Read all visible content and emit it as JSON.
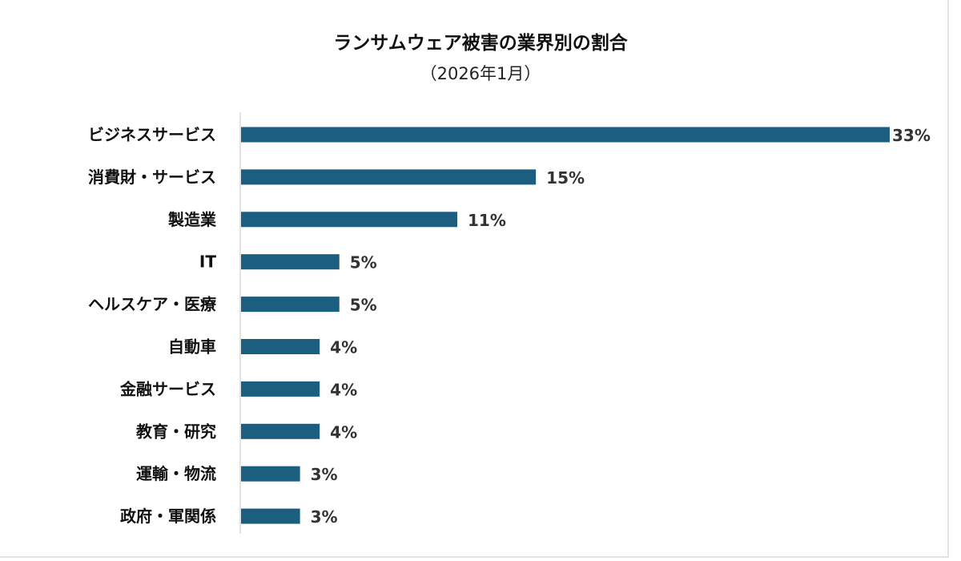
{
  "chart_data": {
    "type": "bar",
    "orientation": "horizontal",
    "title": "ランサムウェア被害の業界別の割合",
    "subtitle": "（2026年1月）",
    "categories": [
      "ビジネスサービス",
      "消費財・サービス",
      "製造業",
      "IT",
      "ヘルスケア・医療",
      "自動車",
      "金融サービス",
      "教育・研究",
      "運輸・物流",
      "政府・軍関係"
    ],
    "values": [
      33,
      15,
      11,
      5,
      5,
      4,
      4,
      4,
      3,
      3
    ],
    "value_labels": [
      "33%",
      "15%",
      "11%",
      "5%",
      "5%",
      "4%",
      "4%",
      "4%",
      "3%",
      "3%"
    ],
    "unit": "%",
    "xlim": [
      0,
      33
    ],
    "grid": false,
    "legend": "none",
    "bar_color": "#1b5e80"
  }
}
